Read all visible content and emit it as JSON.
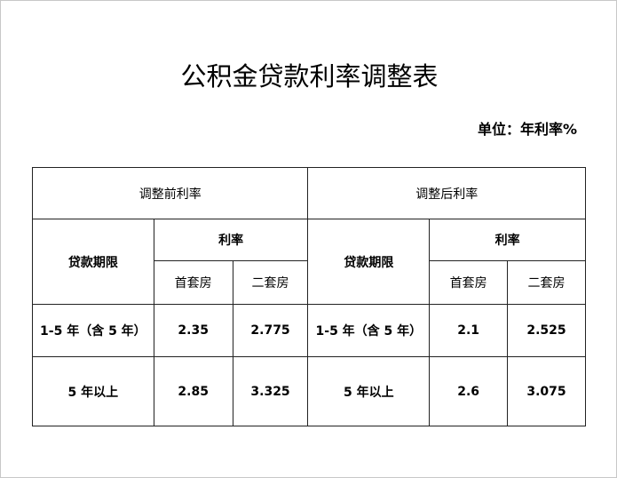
{
  "title": "公积金贷款利率调整表",
  "unit": "单位：年利率%",
  "table": {
    "group_before": "调整前利率",
    "group_after": "调整后利率",
    "term_header": "贷款期限",
    "rate_header": "利率",
    "first_home": "首套房",
    "second_home": "二套房",
    "rows": [
      {
        "term": "1-5 年（含 5 年）",
        "before_first": "2.35",
        "before_second": "2.775",
        "after_first": "2.1",
        "after_second": "2.525"
      },
      {
        "term": "5 年以上",
        "before_first": "2.85",
        "before_second": "3.325",
        "after_first": "2.6",
        "after_second": "3.075"
      }
    ]
  }
}
